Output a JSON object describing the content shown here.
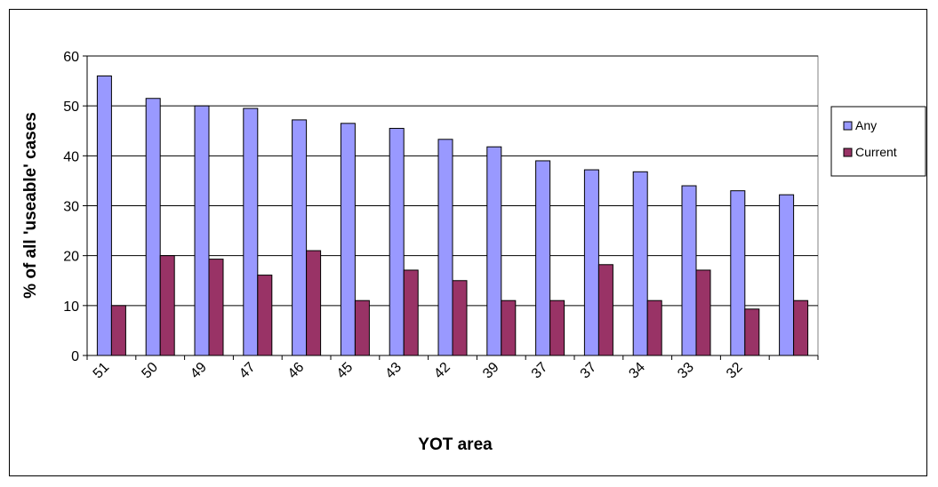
{
  "chart_data": {
    "type": "bar",
    "title": "",
    "xlabel": "YOT area",
    "ylabel": "% of all 'useable' cases",
    "ylim": [
      0,
      60
    ],
    "yticks": [
      0,
      10,
      20,
      30,
      40,
      50,
      60
    ],
    "grid": true,
    "legend_position": "right",
    "categories": [
      "51",
      "50",
      "49",
      "47",
      "46",
      "45",
      "43",
      "42",
      "39",
      "37",
      "37",
      "34",
      "33",
      "32",
      ""
    ],
    "series": [
      {
        "name": "Any",
        "color": "#9999ff",
        "values": [
          56,
          51.5,
          50,
          49.5,
          47.2,
          46.5,
          45.5,
          43.3,
          41.8,
          39,
          37.2,
          36.8,
          34,
          33,
          32.2
        ]
      },
      {
        "name": "Current",
        "color": "#993366",
        "values": [
          10,
          20,
          19.3,
          16.1,
          21,
          11,
          17.1,
          15,
          11,
          11,
          18.2,
          11,
          17.1,
          9.3,
          11
        ]
      }
    ]
  }
}
